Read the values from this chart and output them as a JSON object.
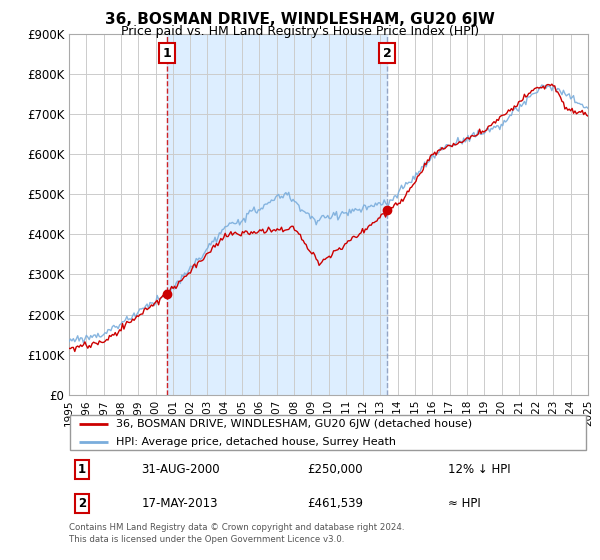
{
  "title": "36, BOSMAN DRIVE, WINDLESHAM, GU20 6JW",
  "subtitle": "Price paid vs. HM Land Registry's House Price Index (HPI)",
  "legend_line1": "36, BOSMAN DRIVE, WINDLESHAM, GU20 6JW (detached house)",
  "legend_line2": "HPI: Average price, detached house, Surrey Heath",
  "annotation1_label": "1",
  "annotation1_date": "31-AUG-2000",
  "annotation1_price": "£250,000",
  "annotation1_hpi": "12% ↓ HPI",
  "annotation2_label": "2",
  "annotation2_date": "17-MAY-2013",
  "annotation2_price": "£461,539",
  "annotation2_hpi": "≈ HPI",
  "footer1": "Contains HM Land Registry data © Crown copyright and database right 2024.",
  "footer2": "This data is licensed under the Open Government Licence v3.0.",
  "hpi_color": "#7aaddc",
  "price_color": "#cc0000",
  "sale1_vline_color": "#cc0000",
  "sale2_vline_color": "#8899bb",
  "shading_color": "#ddeeff",
  "background_color": "#ffffff",
  "grid_color": "#cccccc",
  "ylim": [
    0,
    900000
  ],
  "yticks": [
    0,
    100000,
    200000,
    300000,
    400000,
    500000,
    600000,
    700000,
    800000,
    900000
  ],
  "year_start": 1995,
  "year_end": 2025,
  "sale1_year": 2000.67,
  "sale1_price": 250000,
  "sale2_year": 2013.38,
  "sale2_price": 461539
}
